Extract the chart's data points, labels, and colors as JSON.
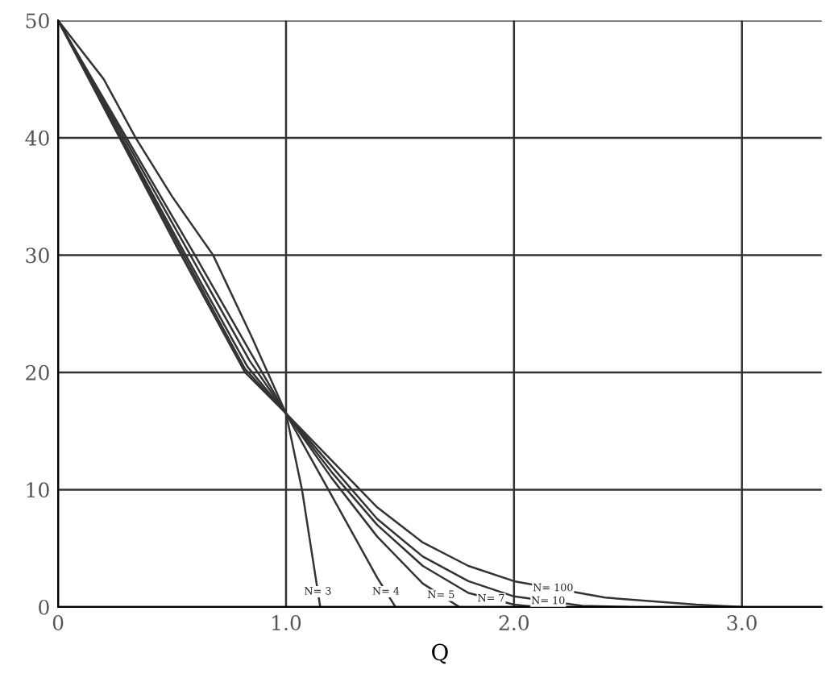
{
  "chart_data": {
    "type": "line",
    "xlabel": "Q",
    "xlim": [
      0,
      3.35
    ],
    "ylim": [
      0,
      50
    ],
    "xticks": [
      0,
      {
        "value": 1.0,
        "label": "1.0"
      },
      {
        "value": 2.0,
        "label": "2.0"
      },
      {
        "value": 3.0,
        "label": "3.0"
      }
    ],
    "yticks": [
      0,
      10,
      20,
      30,
      40,
      50
    ],
    "grid": true,
    "marker": "none",
    "line_style": "solid",
    "series": [
      {
        "name": "N= 3",
        "color": "#333333",
        "x": [
          0,
          0.2,
          0.34,
          0.5,
          0.68,
          0.85,
          1.0,
          1.07,
          1.15
        ],
        "values": [
          50,
          45,
          40,
          35,
          30,
          23,
          16.5,
          10,
          0
        ]
      },
      {
        "name": "N= 4",
        "color": "#333333",
        "x": [
          0,
          0.3,
          0.6,
          0.85,
          1.0,
          1.1,
          1.2,
          1.3,
          1.4,
          1.48
        ],
        "values": [
          50,
          40,
          30,
          21.5,
          16.5,
          13,
          9.5,
          6,
          2.5,
          0
        ]
      },
      {
        "name": "N= 5",
        "color": "#333333",
        "x": [
          0,
          0.29,
          0.58,
          0.84,
          1.0,
          1.2,
          1.4,
          1.6,
          1.76
        ],
        "values": [
          50,
          40,
          30,
          21,
          16.5,
          11,
          6,
          2,
          0
        ]
      },
      {
        "name": "N= 7",
        "color": "#333333",
        "x": [
          0,
          0.28,
          0.56,
          0.83,
          1.0,
          1.2,
          1.4,
          1.6,
          1.8,
          2.0,
          2.1
        ],
        "values": [
          50,
          40,
          30,
          20.5,
          16.5,
          11.5,
          7,
          3.5,
          1.2,
          0.2,
          0
        ]
      },
      {
        "name": "N= 10",
        "color": "#333333",
        "x": [
          0,
          0.275,
          0.55,
          0.82,
          1.0,
          1.2,
          1.4,
          1.6,
          1.8,
          2.0,
          2.3,
          2.5
        ],
        "values": [
          50,
          40,
          30,
          20.3,
          16.5,
          12,
          7.5,
          4.3,
          2.2,
          0.9,
          0.1,
          0
        ]
      },
      {
        "name": "N= 100",
        "color": "#333333",
        "x": [
          0,
          0.27,
          0.54,
          0.82,
          1.0,
          1.2,
          1.4,
          1.6,
          1.8,
          2.0,
          2.4,
          2.8,
          3.0
        ],
        "values": [
          50,
          40,
          30,
          20,
          16.5,
          12.5,
          8.5,
          5.5,
          3.5,
          2.2,
          0.8,
          0.2,
          0
        ]
      }
    ]
  }
}
